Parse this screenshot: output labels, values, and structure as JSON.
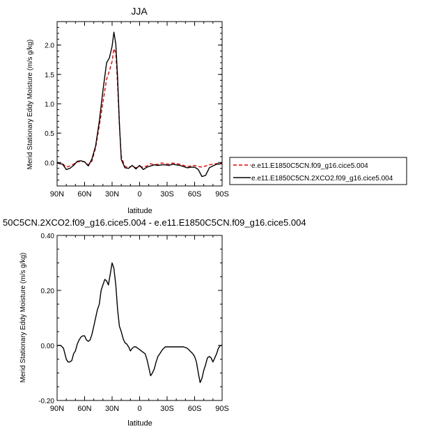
{
  "chart_data": [
    {
      "type": "line",
      "title": "JJA",
      "xlabel": "latitude",
      "ylabel": "Merid Stationary Eddy Moisture (m/s g/kg)",
      "x_ticks": [
        90,
        60,
        30,
        0,
        -30,
        -60,
        -90
      ],
      "x_tick_labels": [
        "90N",
        "60N",
        "30N",
        "0",
        "30S",
        "60S",
        "90S"
      ],
      "xlim": [
        90,
        -90
      ],
      "y_ticks": [
        0,
        0.5,
        1.0,
        1.5,
        2.0
      ],
      "y_tick_labels": [
        "0.0",
        "0.5",
        "1.0",
        "1.5",
        "2.0"
      ],
      "ylim": [
        -0.4,
        2.4
      ],
      "legend_position": "right",
      "series": [
        {
          "name": "e.e11.E1850C5CN.f09_g16.cice5.004",
          "color": "#dd0000",
          "dash": "dashed",
          "x": [
            90,
            84,
            80,
            76,
            72,
            68,
            64,
            60,
            56,
            52,
            48,
            44,
            40,
            36,
            33,
            30,
            28,
            26,
            24,
            22,
            20,
            16,
            12,
            8,
            4,
            0,
            -4,
            -8,
            -12,
            -16,
            -20,
            -24,
            -28,
            -32,
            -36,
            -40,
            -44,
            -48,
            -52,
            -56,
            -60,
            -64,
            -68,
            -72,
            -76,
            -80,
            -84,
            -90
          ],
          "y": [
            -0.01,
            -0.02,
            -0.08,
            -0.06,
            -0.03,
            0.01,
            0.02,
            0.01,
            -0.04,
            0.02,
            0.25,
            0.62,
            1.02,
            1.42,
            1.56,
            1.72,
            1.94,
            1.86,
            1.32,
            0.62,
            0.1,
            -0.07,
            -0.08,
            -0.06,
            -0.09,
            -0.07,
            -0.08,
            -0.06,
            -0.02,
            -0.04,
            -0.03,
            -0.01,
            -0.02,
            -0.03,
            -0.01,
            -0.02,
            -0.03,
            -0.05,
            -0.07,
            -0.06,
            -0.05,
            -0.07,
            -0.08,
            -0.06,
            -0.04,
            -0.03,
            -0.02,
            -0.01
          ]
        },
        {
          "name": "e.e11.E1850C5CN.2XCO2.f09_g16.cice5.004",
          "color": "#000000",
          "dash": "solid",
          "x": [
            90,
            84,
            80,
            76,
            72,
            68,
            64,
            60,
            56,
            52,
            48,
            44,
            40,
            36,
            33,
            30,
            28,
            26,
            24,
            22,
            20,
            16,
            12,
            8,
            4,
            0,
            -4,
            -8,
            -12,
            -16,
            -20,
            -24,
            -28,
            -32,
            -36,
            -40,
            -44,
            -48,
            -52,
            -56,
            -60,
            -64,
            -68,
            -72,
            -76,
            -80,
            -84,
            -90
          ],
          "y": [
            -0.01,
            -0.03,
            -0.12,
            -0.1,
            -0.05,
            0.02,
            0.03,
            0.01,
            -0.06,
            0.06,
            0.28,
            0.7,
            1.22,
            1.7,
            1.78,
            1.98,
            2.22,
            2.02,
            1.45,
            0.66,
            0.05,
            -0.09,
            -0.1,
            -0.05,
            -0.11,
            -0.05,
            -0.12,
            -0.08,
            -0.06,
            -0.04,
            -0.05,
            -0.04,
            -0.04,
            -0.05,
            -0.03,
            -0.04,
            -0.05,
            -0.07,
            -0.09,
            -0.08,
            -0.08,
            -0.12,
            -0.24,
            -0.22,
            -0.09,
            -0.06,
            -0.03,
            -0.02
          ]
        }
      ]
    },
    {
      "type": "line",
      "title": "50C5CN.2XCO2.f09_g16.cice5.004 - e.e11.E1850C5CN.f09_g16.cice5.004",
      "xlabel": "latitude",
      "ylabel": "Merid Stationary Eddy Moisture (m/s g/kg)",
      "x_ticks": [
        90,
        60,
        30,
        0,
        -30,
        -60,
        -90
      ],
      "x_tick_labels": [
        "90N",
        "60N",
        "30N",
        "0",
        "30S",
        "60S",
        "90S"
      ],
      "xlim": [
        90,
        -90
      ],
      "y_ticks": [
        -0.2,
        0.0,
        0.2,
        0.4
      ],
      "y_tick_labels": [
        "-0.20",
        "0.00",
        "0.20",
        "0.40"
      ],
      "ylim": [
        -0.2,
        0.4
      ],
      "legend_position": "none",
      "series": [
        {
          "color": "#000000",
          "dash": "solid",
          "x": [
            90,
            86,
            83,
            80,
            78,
            76,
            74,
            72,
            70,
            68,
            66,
            64,
            62,
            60,
            58,
            56,
            54,
            52,
            50,
            48,
            46,
            44,
            42,
            40,
            38,
            36,
            34,
            32,
            30,
            28,
            26,
            24,
            22,
            20,
            18,
            16,
            14,
            12,
            10,
            8,
            6,
            4,
            2,
            0,
            -2,
            -4,
            -6,
            -8,
            -10,
            -12,
            -14,
            -16,
            -18,
            -20,
            -22,
            -25,
            -28,
            -32,
            -36,
            -40,
            -44,
            -48,
            -52,
            -55,
            -58,
            -60,
            -62,
            -64,
            -66,
            -68,
            -70,
            -72,
            -74,
            -76,
            -78,
            -80,
            -82,
            -84,
            -86,
            -88,
            -90
          ],
          "y": [
            0.0,
            0.0,
            -0.01,
            -0.05,
            -0.06,
            -0.06,
            -0.055,
            -0.03,
            -0.02,
            0.005,
            0.02,
            0.03,
            0.035,
            0.035,
            0.02,
            0.015,
            0.02,
            0.04,
            0.07,
            0.1,
            0.13,
            0.15,
            0.2,
            0.22,
            0.24,
            0.235,
            0.22,
            0.26,
            0.3,
            0.28,
            0.22,
            0.13,
            0.07,
            0.05,
            0.025,
            0.01,
            0.005,
            -0.005,
            -0.02,
            -0.01,
            -0.005,
            -0.005,
            -0.01,
            -0.015,
            -0.02,
            -0.025,
            -0.03,
            -0.05,
            -0.08,
            -0.11,
            -0.1,
            -0.085,
            -0.06,
            -0.04,
            -0.03,
            -0.015,
            -0.005,
            -0.005,
            -0.005,
            -0.005,
            -0.005,
            -0.005,
            -0.01,
            -0.02,
            -0.03,
            -0.04,
            -0.06,
            -0.1,
            -0.135,
            -0.12,
            -0.09,
            -0.07,
            -0.045,
            -0.04,
            -0.045,
            -0.06,
            -0.045,
            -0.03,
            -0.01,
            0.0,
            0.0
          ]
        }
      ]
    }
  ]
}
